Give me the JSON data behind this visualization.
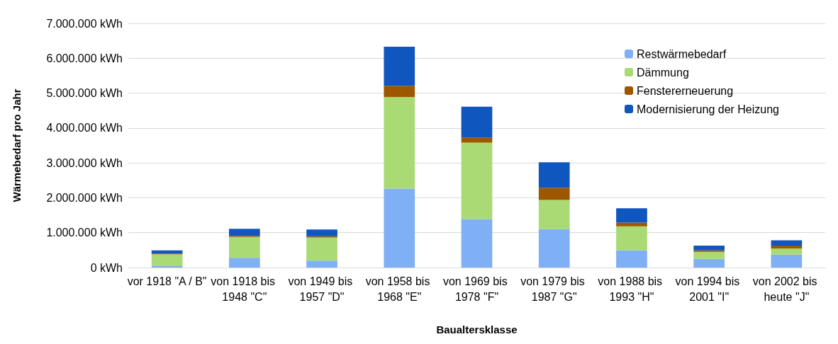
{
  "chart_data": {
    "type": "bar",
    "stacked": true,
    "xlabel": "Baualtersklasse",
    "ylabel": "Wärmebedarf pro Jahr",
    "categories": [
      "vor 1918 \"A / B\"",
      "von 1918 bis 1948 \"C\"",
      "von 1949 bis 1957 \"D\"",
      "von 1958 bis 1968 \"E\"",
      "von 1969 bis 1978 \"F\"",
      "von 1979 bis 1987 \"G\"",
      "von 1988 bis 1993 \"H\"",
      "von 1994 bis 2001 \"I\"",
      "von 2002 bis heute \"J\""
    ],
    "series": [
      {
        "name": "Restwärmebedarf",
        "color": "#7faff5",
        "values": [
          40000,
          280000,
          200000,
          2260000,
          1390000,
          1100000,
          490000,
          250000,
          370000
        ]
      },
      {
        "name": "Dämmung",
        "color": "#a9da73",
        "values": [
          340000,
          600000,
          660000,
          2630000,
          2190000,
          840000,
          690000,
          200000,
          180000
        ]
      },
      {
        "name": "Fenstererneuerung",
        "color": "#9c5700",
        "values": [
          20000,
          30000,
          40000,
          320000,
          150000,
          350000,
          110000,
          40000,
          80000
        ]
      },
      {
        "name": "Modernisierung der Heizung",
        "color": "#0f56be",
        "values": [
          90000,
          200000,
          190000,
          1120000,
          880000,
          730000,
          410000,
          140000,
          150000
        ]
      }
    ],
    "ylim": [
      0,
      7000000
    ],
    "yticks": [
      {
        "value": 0,
        "label": "0 kWh"
      },
      {
        "value": 1000000,
        "label": "1.000.000 kWh"
      },
      {
        "value": 2000000,
        "label": "2.000.000 kWh"
      },
      {
        "value": 3000000,
        "label": "3.000.000 kWh"
      },
      {
        "value": 4000000,
        "label": "4.000.000 kWh"
      },
      {
        "value": 5000000,
        "label": "5.000.000 kWh"
      },
      {
        "value": 6000000,
        "label": "6.000.000 kWh"
      },
      {
        "value": 7000000,
        "label": "7.000.000 kWh"
      }
    ],
    "grid": "y",
    "legend": "top right"
  }
}
